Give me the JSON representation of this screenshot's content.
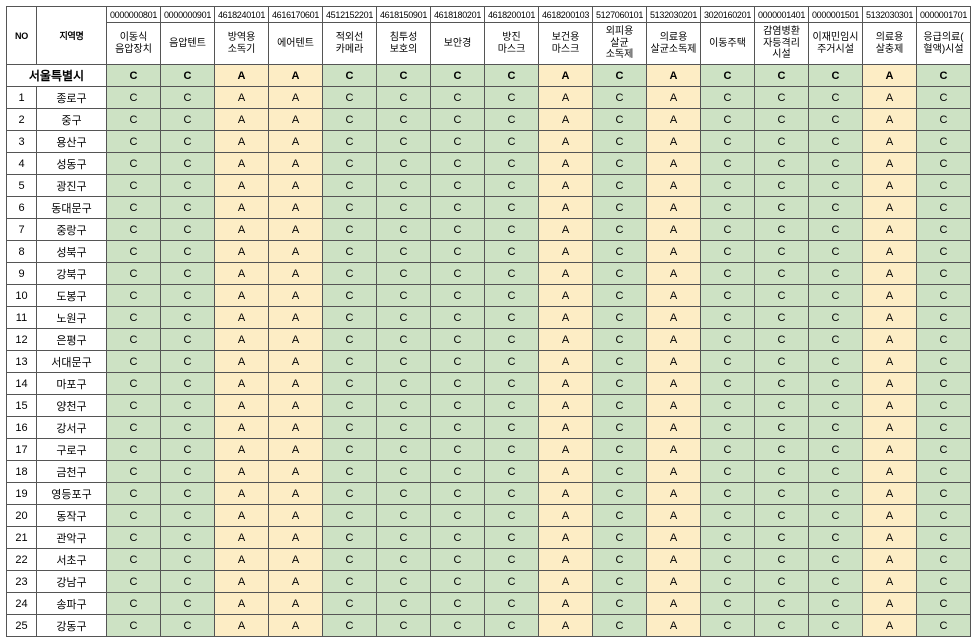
{
  "colors": {
    "green_bg": "#cde2c4",
    "yellow_bg": "#fdedc5",
    "white_bg": "#ffffff",
    "border": "#555555"
  },
  "header": {
    "no": "NO",
    "region": "지역명",
    "codes": [
      "0000000801",
      "0000000901",
      "4618240101",
      "4616170601",
      "4512152201",
      "4618150901",
      "4618180201",
      "4618200101",
      "4618200103",
      "5127060101",
      "5132030201",
      "3020160201",
      "0000001401",
      "0000001501",
      "5132030301",
      "0000001701"
    ],
    "labels": [
      "이동식\n음압장치",
      "음압텐트",
      "방역용\n소독기",
      "에어텐트",
      "적외선\n카메라",
      "침투성\n보호의",
      "보안경",
      "방진\n마스크",
      "보건용\n마스크",
      "외피용\n살균\n소독제",
      "의료용\n살균소독제",
      "이동주택",
      "감염병환\n자등격리\n시설",
      "이재민임시\n주거시설",
      "의료용\n살충제",
      "응급의료(\n혈액)시설"
    ]
  },
  "total_row": {
    "label": "서울특별시",
    "cells": [
      "C",
      "C",
      "A",
      "A",
      "C",
      "C",
      "C",
      "C",
      "A",
      "C",
      "A",
      "C",
      "C",
      "C",
      "A",
      "C"
    ]
  },
  "districts": [
    {
      "no": "1",
      "name": "종로구"
    },
    {
      "no": "2",
      "name": "중구"
    },
    {
      "no": "3",
      "name": "용산구"
    },
    {
      "no": "4",
      "name": "성동구"
    },
    {
      "no": "5",
      "name": "광진구"
    },
    {
      "no": "6",
      "name": "동대문구"
    },
    {
      "no": "7",
      "name": "중랑구"
    },
    {
      "no": "8",
      "name": "성북구"
    },
    {
      "no": "9",
      "name": "강북구"
    },
    {
      "no": "10",
      "name": "도봉구"
    },
    {
      "no": "11",
      "name": "노원구"
    },
    {
      "no": "12",
      "name": "은평구"
    },
    {
      "no": "13",
      "name": "서대문구"
    },
    {
      "no": "14",
      "name": "마포구"
    },
    {
      "no": "15",
      "name": "양천구"
    },
    {
      "no": "16",
      "name": "강서구"
    },
    {
      "no": "17",
      "name": "구로구"
    },
    {
      "no": "18",
      "name": "금천구"
    },
    {
      "no": "19",
      "name": "영등포구"
    },
    {
      "no": "20",
      "name": "동작구"
    },
    {
      "no": "21",
      "name": "관악구"
    },
    {
      "no": "22",
      "name": "서초구"
    },
    {
      "no": "23",
      "name": "강남구"
    },
    {
      "no": "24",
      "name": "송파구"
    },
    {
      "no": "25",
      "name": "강동구"
    }
  ],
  "row_pattern_default": [
    "C",
    "C",
    "A",
    "A",
    "C",
    "C",
    "C",
    "C",
    "A",
    "C",
    "A",
    "C",
    "C",
    "C",
    "A",
    "C"
  ],
  "row_overrides": {
    "11": {
      "8": "A"
    },
    "12": {
      "8": "A"
    }
  },
  "legend": {
    "A": "#fdedc5",
    "C": "#cde2c4"
  }
}
